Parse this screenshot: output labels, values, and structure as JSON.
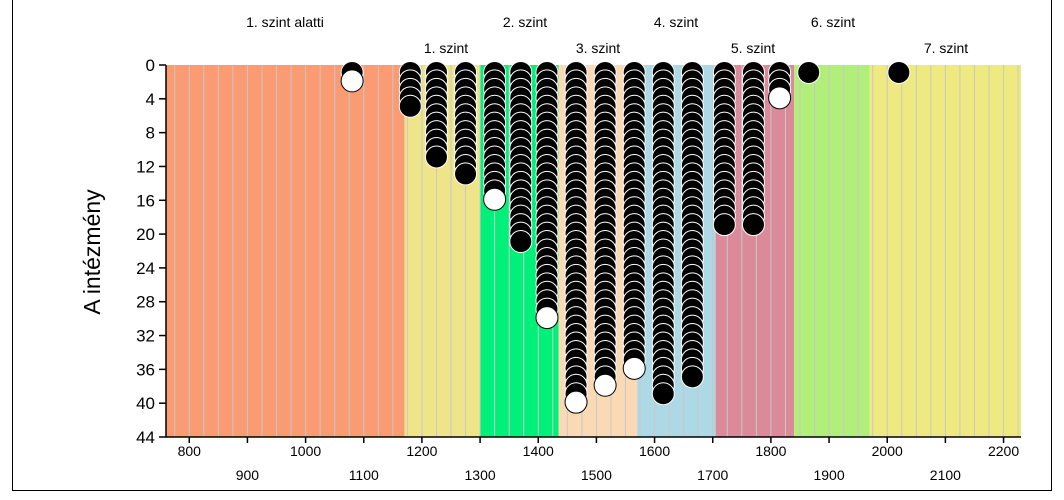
{
  "chart_data": {
    "type": "scatter",
    "ylabel": "A intézmény",
    "y_ticks": [
      "0",
      "4",
      "8",
      "12",
      "16",
      "20",
      "24",
      "28",
      "32",
      "36",
      "40",
      "44"
    ],
    "ylim": [
      0,
      44
    ],
    "y_inverted": true,
    "xlim": [
      760,
      2230
    ],
    "x_ticks_top_row": [
      800,
      1000,
      1200,
      1400,
      1600,
      1800,
      2000,
      2200
    ],
    "x_ticks_bottom_row": [
      900,
      1100,
      1300,
      1500,
      1700,
      1900,
      2100
    ],
    "grid": "vertical",
    "bands": [
      {
        "label": "1. szint alatti",
        "from": 760,
        "to": 1170,
        "color": "#FA9B73"
      },
      {
        "label": "1. szint",
        "from": 1170,
        "to": 1300,
        "color": "#EEE58A"
      },
      {
        "label": "2. szint",
        "from": 1300,
        "to": 1435,
        "color": "#00F07A"
      },
      {
        "label": "3. szint",
        "from": 1435,
        "to": 1570,
        "color": "#FAD9B5"
      },
      {
        "label": "4. szint",
        "from": 1570,
        "to": 1705,
        "color": "#ADD8E6"
      },
      {
        "label": "5. szint",
        "from": 1705,
        "to": 1840,
        "color": "#DB8A9A"
      },
      {
        "label": "6. szint",
        "from": 1840,
        "to": 1970,
        "color": "#B1EE7A"
      },
      {
        "label": "7. szint",
        "from": 1970,
        "to": 2230,
        "color": "#EEE980"
      }
    ],
    "series": [
      {
        "x": [
          1080
        ],
        "top_count": [
          1
        ],
        "white_y": [
          2
        ]
      },
      {
        "x": [
          1180
        ],
        "top_count": [
          5
        ],
        "white_y": [
          null
        ]
      },
      {
        "x": [
          1225
        ],
        "top_count": [
          11
        ],
        "white_y": [
          null
        ]
      },
      {
        "x": [
          1275
        ],
        "top_count": [
          13
        ],
        "white_y": [
          null
        ]
      },
      {
        "x": [
          1325
        ],
        "top_count": [
          15
        ],
        "white_y": [
          16
        ]
      },
      {
        "x": [
          1370
        ],
        "top_count": [
          21
        ],
        "white_y": [
          null
        ]
      },
      {
        "x": [
          1415
        ],
        "top_count": [
          29
        ],
        "white_y": [
          30
        ]
      },
      {
        "x": [
          1465
        ],
        "top_count": [
          39
        ],
        "white_y": [
          40
        ]
      },
      {
        "x": [
          1515
        ],
        "top_count": [
          37
        ],
        "white_y": [
          38
        ]
      },
      {
        "x": [
          1565
        ],
        "top_count": [
          35
        ],
        "white_y": [
          36
        ]
      },
      {
        "x": [
          1615
        ],
        "top_count": [
          39
        ],
        "white_y": [
          null
        ]
      },
      {
        "x": [
          1665
        ],
        "top_count": [
          37
        ],
        "white_y": [
          null
        ]
      },
      {
        "x": [
          1720
        ],
        "top_count": [
          19
        ],
        "white_y": [
          null
        ]
      },
      {
        "x": [
          1770
        ],
        "top_count": [
          19
        ],
        "white_y": [
          null
        ]
      },
      {
        "x": [
          1815
        ],
        "top_count": [
          3
        ],
        "white_y": [
          4
        ]
      },
      {
        "x": [
          1865
        ],
        "top_count": [
          1
        ],
        "white_y": [
          null
        ]
      },
      {
        "x": [
          2020
        ],
        "top_count": [
          1
        ],
        "white_y": [
          null
        ]
      }
    ]
  }
}
